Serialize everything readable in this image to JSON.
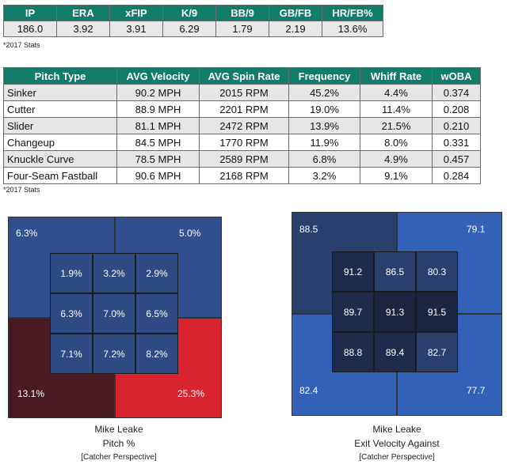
{
  "season_stats": {
    "headers": [
      "IP",
      "ERA",
      "xFIP",
      "K/9",
      "BB/9",
      "GB/FB",
      "HR/FB%"
    ],
    "values": [
      "186.0",
      "3.92",
      "3.91",
      "6.29",
      "1.79",
      "2.19",
      "13.6%"
    ],
    "note": "*2017 Stats"
  },
  "pitch_table": {
    "headers": [
      "Pitch Type",
      "AVG Velocity",
      "AVG Spin Rate",
      "Frequency",
      "Whiff Rate",
      "wOBA"
    ],
    "rows": [
      [
        "Sinker",
        "90.2 MPH",
        "2015 RPM",
        "45.2%",
        "4.4%",
        "0.374"
      ],
      [
        "Cutter",
        "88.9 MPH",
        "2201 RPM",
        "19.0%",
        "11.4%",
        "0.208"
      ],
      [
        "Slider",
        "81.1 MPH",
        "2472 RPM",
        "13.9%",
        "21.5%",
        "0.210"
      ],
      [
        "Changeup",
        "84.5 MPH",
        "1770 RPM",
        "11.9%",
        "8.0%",
        "0.331"
      ],
      [
        "Knuckle Curve",
        "78.5 MPH",
        "2589 RPM",
        "6.8%",
        "4.9%",
        "0.457"
      ],
      [
        "Four-Seam Fastball",
        "90.6 MPH",
        "2168 RPM",
        "3.2%",
        "9.1%",
        "0.284"
      ]
    ],
    "note": "*2017 Stats"
  },
  "pitch_zone": {
    "outer": {
      "top_left": "6.3%",
      "top_right": "5.0%",
      "bottom_left": "13.1%",
      "bottom_right": "25.3%"
    },
    "inner": [
      [
        "1.9%",
        "3.2%",
        "2.9%"
      ],
      [
        "6.3%",
        "7.0%",
        "6.5%"
      ],
      [
        "7.1%",
        "7.2%",
        "8.2%"
      ]
    ],
    "colors": {
      "top_left": "#2f4f8f",
      "top_right": "#2f4f8f",
      "bottom_left": "#4a1a22",
      "bottom_right": "#d9232e",
      "inner": "#2e4a83"
    },
    "caption": {
      "line1": "Mike Leake",
      "line2": "Pitch %",
      "line3": "[Catcher Perspective]"
    }
  },
  "velo_zone": {
    "outer": {
      "top_left": "88.5",
      "top_right": "79.1",
      "bottom_left": "82.4",
      "bottom_right": "77.7"
    },
    "inner": [
      [
        "91.2",
        "86.5",
        "80.3"
      ],
      [
        "89.7",
        "91.3",
        "91.5"
      ],
      [
        "88.8",
        "89.4",
        "82.7"
      ]
    ],
    "colors": {
      "top_left": "#2a3f6e",
      "top_right": "#3461b8",
      "bottom_left": "#3461b8",
      "bottom_right": "#3461b8",
      "inner": [
        [
          "#1e2b4a",
          "#2a3f6e",
          "#2a3f6e"
        ],
        [
          "#1e2b4a",
          "#1b2540",
          "#1b2540"
        ],
        [
          "#1e2b4a",
          "#1e2b4a",
          "#2a3f6e"
        ]
      ]
    },
    "caption": {
      "line1": "Mike Leake",
      "line2": "Exit Velocity Against",
      "line3": "[Catcher Perspective]"
    }
  }
}
